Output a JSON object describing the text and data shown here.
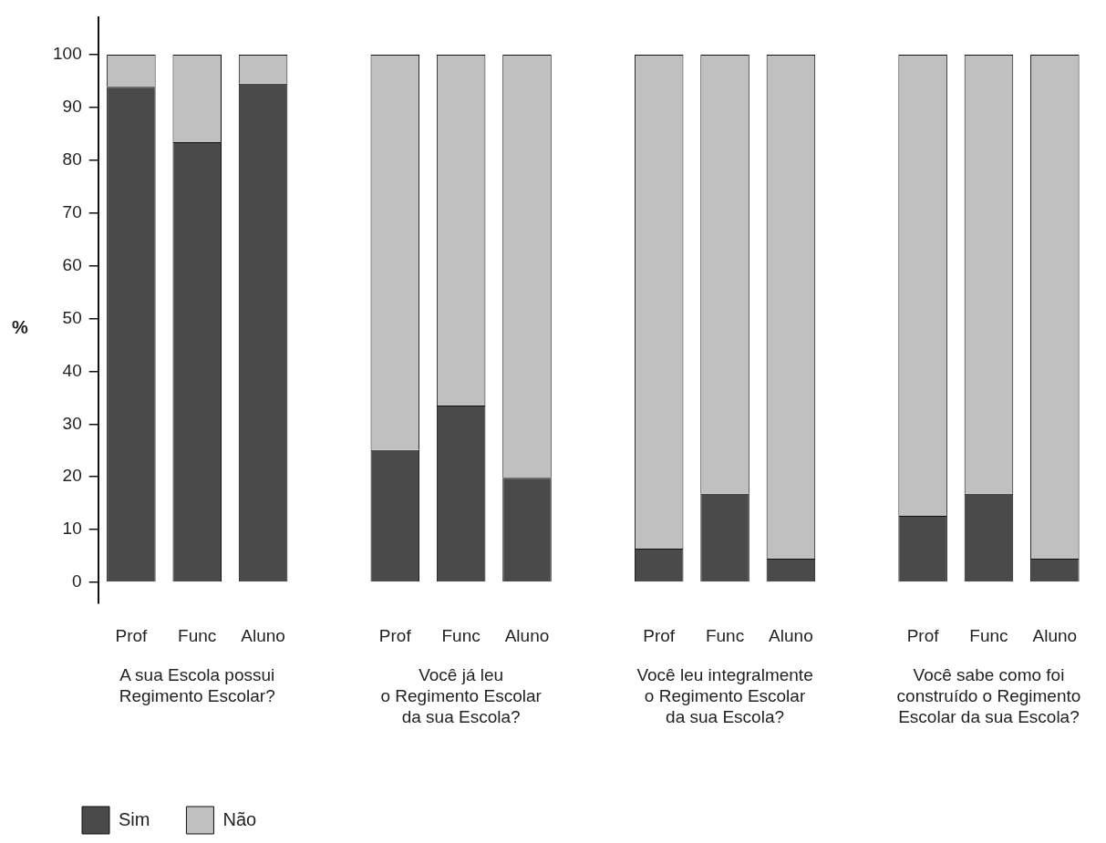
{
  "chart_data": {
    "type": "bar",
    "stacked": true,
    "ylabel": "%",
    "ylim": [
      -4,
      107
    ],
    "yticks": [
      0,
      10,
      20,
      30,
      40,
      50,
      60,
      70,
      80,
      90,
      100
    ],
    "grid": false,
    "legend": "bottom left",
    "categories": [
      "Prof",
      "Func",
      "Aluno",
      null,
      "Prof",
      "Func",
      "Aluno",
      null,
      "Prof",
      "Func",
      "Aluno",
      null,
      "Prof",
      "Func",
      "Aluno"
    ],
    "series": [
      {
        "name": "Sim",
        "color": "#4a4a4a",
        "values": [
          93.9,
          83.4,
          94.5,
          null,
          25.1,
          33.5,
          19.8,
          null,
          6.4,
          16.8,
          4.5,
          null,
          12.6,
          16.8,
          4.5
        ]
      },
      {
        "name": "Não",
        "color": "#c0c0c0",
        "values": [
          6.1,
          16.6,
          5.5,
          null,
          74.9,
          66.5,
          80.2,
          null,
          93.6,
          83.2,
          95.5,
          null,
          87.4,
          83.2,
          95.5
        ]
      }
    ],
    "annotations": [
      "A sua Escola possui\nRegimento Escolar?",
      "Você já leu\no Regimento Escolar\nda sua Escola?",
      "Você leu integralmente\no Regimento Escolar\nda sua Escola?",
      "Você sabe como foi\nconstruído o Regimento\nEscolar da sua Escola?"
    ]
  }
}
